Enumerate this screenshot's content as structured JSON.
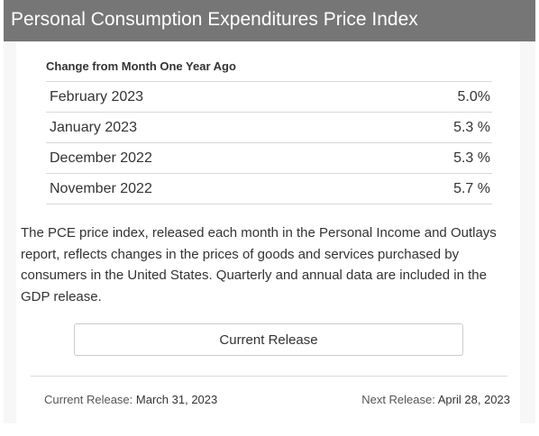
{
  "header": {
    "title": "Personal Consumption Expenditures Price Index"
  },
  "table": {
    "subtitle": "Change from Month One Year Ago",
    "rows": [
      {
        "label": "February 2023",
        "value": "5.0%"
      },
      {
        "label": "January 2023",
        "value": "5.3 %"
      },
      {
        "label": "December 2022",
        "value": "5.3 %"
      },
      {
        "label": "November 2022",
        "value": "5.7 %"
      }
    ]
  },
  "description": "The PCE price index, released each month in the Personal Income and Outlays report, reflects changes in the prices of goods and services purchased by consumers in the United States. Quarterly and annual data are included in the GDP release.",
  "button": {
    "label": "Current Release"
  },
  "footer": {
    "current_label": "Current Release:",
    "current_value": "March 31, 2023",
    "next_label": "Next Release:",
    "next_value": "April 28, 2023"
  },
  "colors": {
    "header_bg": "#767676",
    "header_text": "#ffffff",
    "panel_bg": "#f7f7f7"
  }
}
